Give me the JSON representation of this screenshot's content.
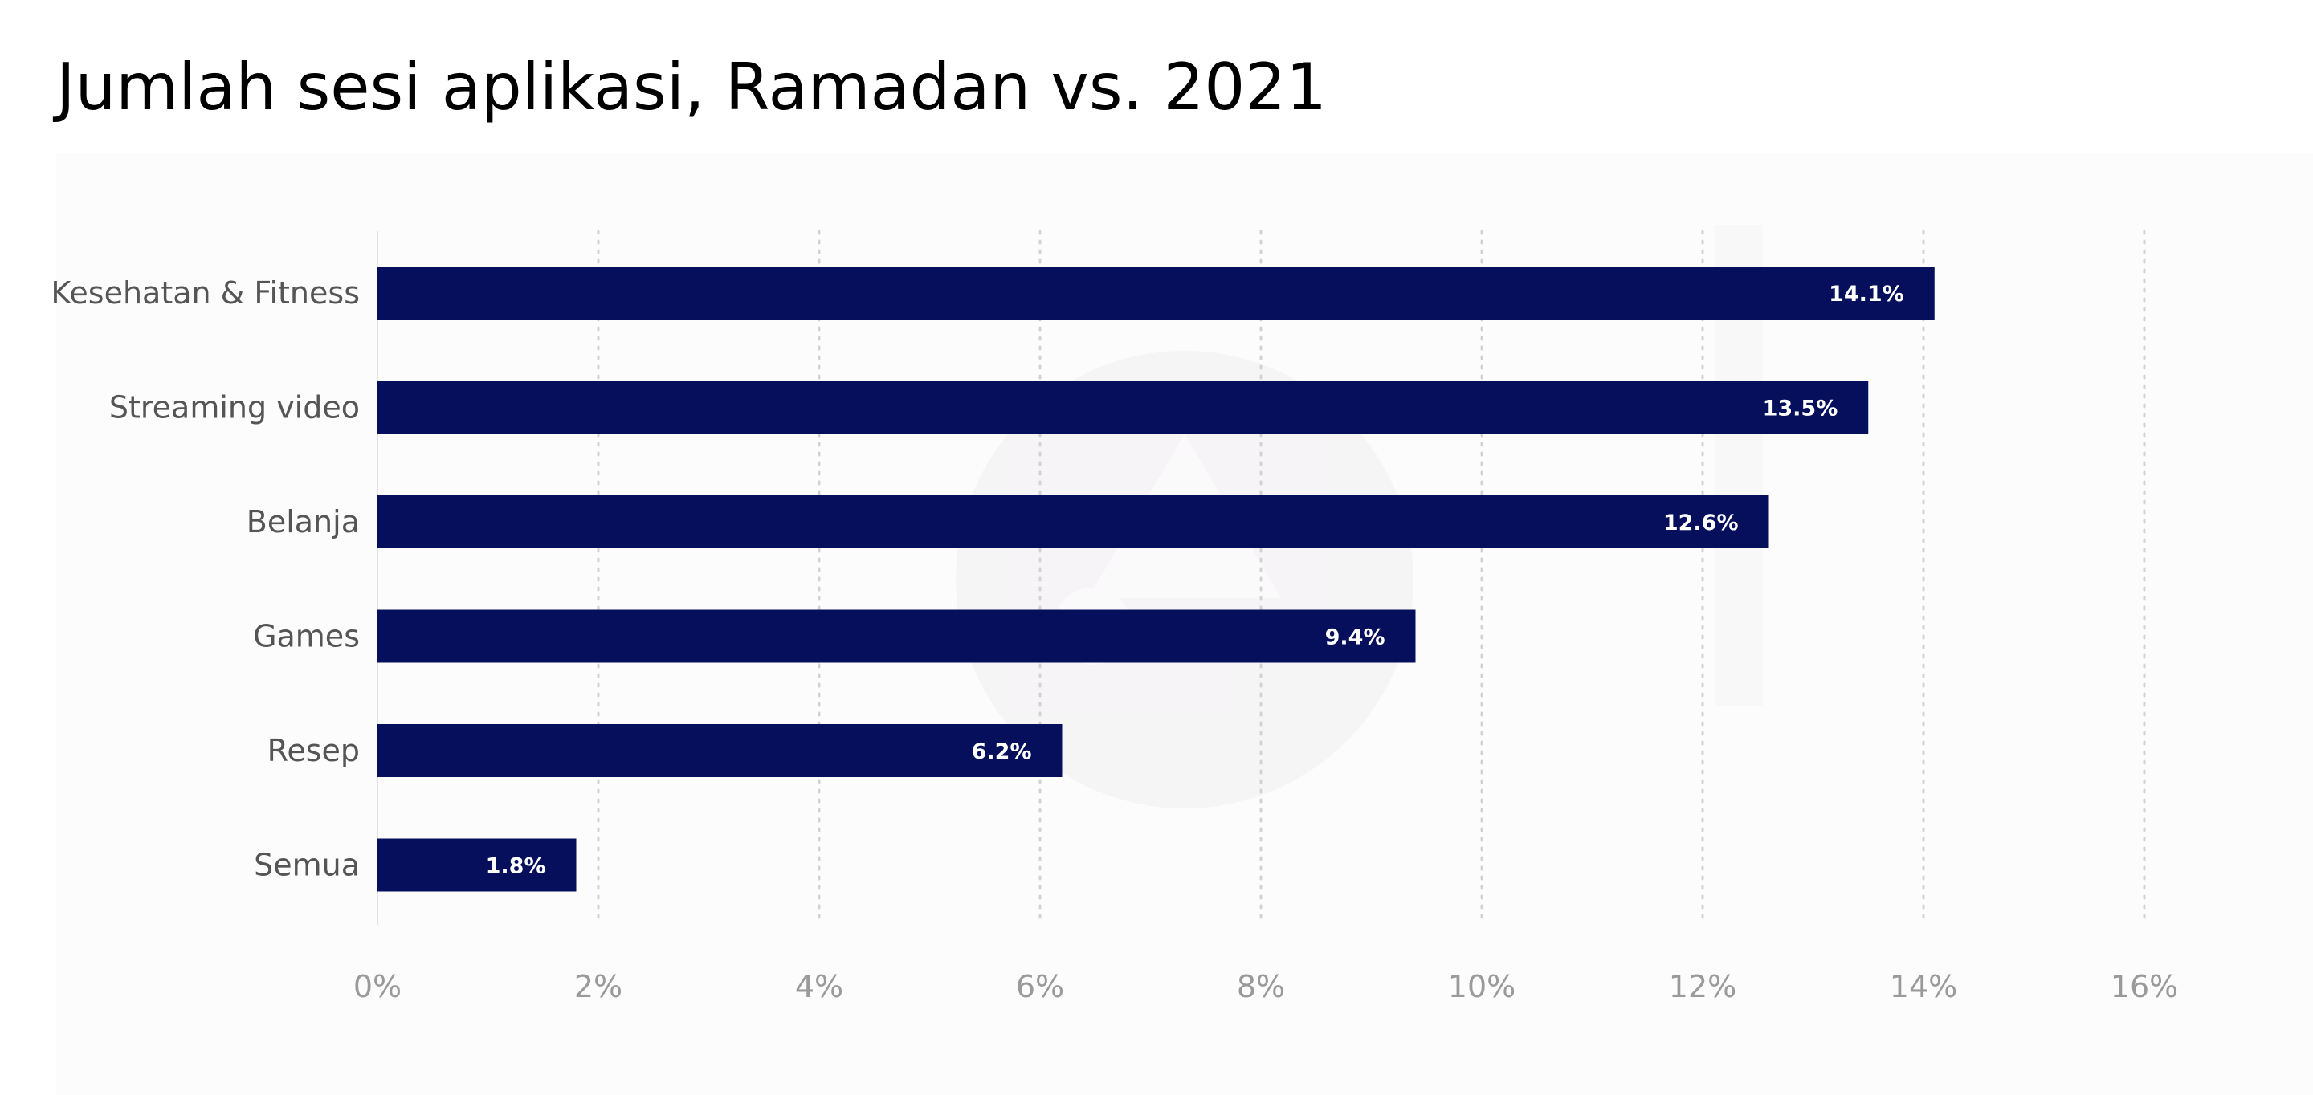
{
  "chart_data": {
    "type": "bar",
    "orientation": "horizontal",
    "title": "Jumlah sesi aplikasi, Ramadan vs. 2021",
    "categories": [
      "Kesehatan & Fitness",
      "Streaming video",
      "Belanja",
      "Games",
      "Resep",
      "Semua"
    ],
    "values": [
      14.1,
      13.5,
      12.6,
      9.4,
      6.2,
      1.8
    ],
    "data_labels": [
      "14.1%",
      "13.5%",
      "12.6%",
      "9.4%",
      "6.2%",
      "1.8%"
    ],
    "xlim": [
      0,
      16
    ],
    "x_ticks": [
      0,
      2,
      4,
      6,
      8,
      10,
      12,
      14,
      16
    ],
    "x_tick_labels": [
      "0%",
      "2%",
      "4%",
      "6%",
      "8%",
      "10%",
      "12%",
      "14%",
      "16%"
    ],
    "xlabel": "",
    "ylabel": "",
    "grid": "vertical dotted",
    "bar_color": "#050f5c",
    "grid_color": "#d2d2d2",
    "label_color": "#555555",
    "tick_color": "#9a9a9a",
    "background_color": "#fdfcfd"
  }
}
